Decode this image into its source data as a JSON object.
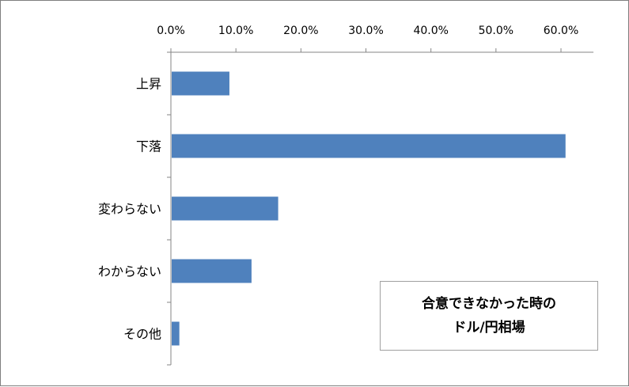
{
  "chart_data": {
    "type": "bar",
    "orientation": "horizontal",
    "title": "合意できなかった時の\nドル/円相場",
    "categories": [
      "上昇",
      "下落",
      "変わらない",
      "わからない",
      "その他"
    ],
    "values": [
      9.0,
      60.7,
      16.5,
      12.4,
      1.3
    ],
    "value_unit": "%",
    "xlim": [
      0,
      65
    ],
    "x_ticks": [
      0,
      10,
      20,
      30,
      40,
      50,
      60
    ],
    "x_tick_labels": [
      "0.0%",
      "10.0%",
      "20.0%",
      "30.0%",
      "40.0%",
      "50.0%",
      "60.0%"
    ],
    "xlabel": "",
    "ylabel": "",
    "axis_position": "top",
    "grid": false,
    "legend": false,
    "bar_color": "#4f81bd"
  }
}
